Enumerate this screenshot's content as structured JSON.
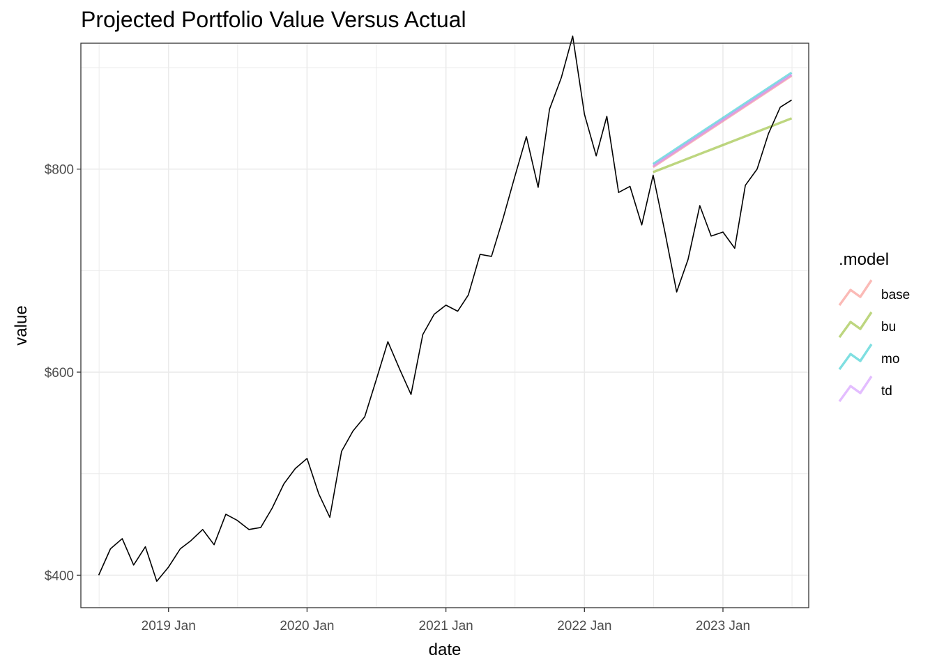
{
  "title": "Projected Portfolio Value Versus Actual",
  "chart_data": {
    "type": "line",
    "title": "Projected Portfolio Value Versus Actual",
    "xlabel": "date",
    "ylabel": "value",
    "x_ticks": [
      {
        "date": "2019-01-01",
        "label": "2019 Jan"
      },
      {
        "date": "2020-01-01",
        "label": "2020 Jan"
      },
      {
        "date": "2021-01-01",
        "label": "2021 Jan"
      },
      {
        "date": "2022-01-01",
        "label": "2022 Jan"
      },
      {
        "date": "2023-01-01",
        "label": "2023 Jan"
      }
    ],
    "y_ticks": [
      {
        "value": 400,
        "label": "$400"
      },
      {
        "value": 600,
        "label": "$600"
      },
      {
        "value": 800,
        "label": "$800"
      }
    ],
    "xlim": [
      "2018-05-15",
      "2023-08-15"
    ],
    "ylim": [
      368,
      924
    ],
    "grid": true,
    "legend": {
      "title": ".model",
      "placement": "right"
    },
    "actual": {
      "color": "#000000",
      "dates": [
        "2018-07-01",
        "2018-08-01",
        "2018-09-01",
        "2018-10-01",
        "2018-11-01",
        "2018-12-01",
        "2019-01-01",
        "2019-02-01",
        "2019-03-01",
        "2019-04-01",
        "2019-05-01",
        "2019-06-01",
        "2019-07-01",
        "2019-08-01",
        "2019-09-01",
        "2019-10-01",
        "2019-11-01",
        "2019-12-01",
        "2020-01-01",
        "2020-02-01",
        "2020-03-01",
        "2020-04-01",
        "2020-05-01",
        "2020-06-01",
        "2020-07-01",
        "2020-08-01",
        "2020-09-01",
        "2020-10-01",
        "2020-11-01",
        "2020-12-01",
        "2021-01-01",
        "2021-02-01",
        "2021-03-01",
        "2021-04-01",
        "2021-05-01",
        "2021-06-01",
        "2021-07-01",
        "2021-08-01",
        "2021-09-01",
        "2021-10-01",
        "2021-11-01",
        "2021-12-01",
        "2022-01-01",
        "2022-02-01",
        "2022-03-01",
        "2022-04-01",
        "2022-05-01",
        "2022-06-01",
        "2022-07-01",
        "2022-08-01",
        "2022-09-01",
        "2022-10-01",
        "2022-11-01",
        "2022-12-01",
        "2023-01-01",
        "2023-02-01",
        "2023-03-01",
        "2023-04-01",
        "2023-05-01",
        "2023-06-01",
        "2023-07-01"
      ],
      "values": [
        400,
        426,
        436,
        410,
        428,
        394,
        408,
        426,
        434,
        445,
        430,
        460,
        454,
        445,
        447,
        466,
        490,
        505,
        515,
        480,
        457,
        522,
        542,
        556,
        592,
        630,
        603,
        578,
        637,
        657,
        666,
        660,
        676,
        716,
        714,
        752,
        792,
        832,
        782,
        859,
        890,
        931,
        854,
        813,
        852,
        777,
        783,
        745,
        794,
        738,
        679,
        711,
        764,
        734,
        738,
        722,
        784,
        800,
        835,
        861,
        868
      ]
    },
    "series": [
      {
        "name": "base",
        "color": "#F8766D",
        "dates": [
          "2022-07-01",
          "2023-07-01"
        ],
        "values": [
          802,
          892
        ]
      },
      {
        "name": "bu",
        "color": "#7CAE00",
        "dates": [
          "2022-07-01",
          "2023-07-01"
        ],
        "values": [
          797,
          850
        ]
      },
      {
        "name": "mo",
        "color": "#00BFC4",
        "dates": [
          "2022-07-01",
          "2023-07-01"
        ],
        "values": [
          805,
          895
        ]
      },
      {
        "name": "td",
        "color": "#C77CFF",
        "dates": [
          "2022-07-01",
          "2023-07-01"
        ],
        "values": [
          803,
          893
        ]
      }
    ]
  }
}
